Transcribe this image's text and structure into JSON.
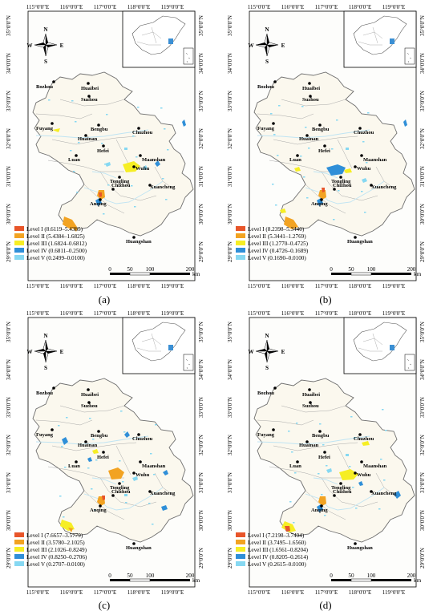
{
  "lon_labels": [
    "115°0'0\"E",
    "116°0'0\"E",
    "117°0'0\"E",
    "118°0'0\"E",
    "119°0'0\"E"
  ],
  "lat_labels": [
    "35°0'0\"N",
    "34°0'0\"N",
    "33°0'0\"N",
    "32°0'0\"N",
    "31°0'0\"N",
    "30°0'0\"N",
    "29°0'0\"N"
  ],
  "compass": {
    "n": "N",
    "s": "S",
    "e": "E",
    "w": "W"
  },
  "scale": {
    "ticks": [
      "0",
      "50",
      "100",
      "200"
    ],
    "unit": "km"
  },
  "cities": [
    "Bozhou",
    "Huaibei",
    "Suzhou",
    "Fuyang",
    "Bengbu",
    "Huainan",
    "Chuzhou",
    "Hefei",
    "Luan",
    "Maanshan",
    "Wuhu",
    "Tongling",
    "Xuancheng",
    "Chizhou",
    "Anqing",
    "Huangshan"
  ],
  "colors": {
    "level1": "#e8552a",
    "level2": "#f2a322",
    "level3": "#f6ee25",
    "level4": "#2f8fd8",
    "level5": "#86d8f2",
    "province_fill": "#fbf8ee",
    "province_border": "#6e6e6e"
  },
  "panels": [
    {
      "caption": "(a)",
      "legend": [
        {
          "name": "Level I",
          "range": "(8.6119–5.4385)"
        },
        {
          "name": "Level II",
          "range": "(5.4384–1.6825)"
        },
        {
          "name": "Level III",
          "range": "(1.6824–0.6812)"
        },
        {
          "name": "Level IV",
          "range": "(0.6811–0.2500)"
        },
        {
          "name": "Level V",
          "range": "(0.2499–0.0100)"
        }
      ]
    },
    {
      "caption": "(b)",
      "legend": [
        {
          "name": "Level I",
          "range": "(8.2398–5.3440)"
        },
        {
          "name": "Level II",
          "range": "(5.3441–1.2769)"
        },
        {
          "name": "Level III",
          "range": "(1.2770–0.4725)"
        },
        {
          "name": "Level IV",
          "range": "(0.4726–0.1689)"
        },
        {
          "name": "Level V",
          "range": "(0.1690–0.0100)"
        }
      ]
    },
    {
      "caption": "(c)",
      "legend": [
        {
          "name": "Level I",
          "range": "(7.6657–3.5779)"
        },
        {
          "name": "Level II",
          "range": "(3.5780–2.1025)"
        },
        {
          "name": "Level III",
          "range": "(2.1026–0.8249)"
        },
        {
          "name": "Level IV",
          "range": "(0.8250–0.2706)"
        },
        {
          "name": "Level V",
          "range": "(0.2707–0.0100)"
        }
      ]
    },
    {
      "caption": "(d)",
      "legend": [
        {
          "name": "Level I",
          "range": "(7.2198–3.7494)"
        },
        {
          "name": "Level II",
          "range": "(3.7495–1.6560)"
        },
        {
          "name": "Level III",
          "range": "(1.6561–0.8204)"
        },
        {
          "name": "Level IV",
          "range": "(0.8205–0.2614)"
        },
        {
          "name": "Level V",
          "range": "(0.2615–0.0100)"
        }
      ]
    }
  ]
}
